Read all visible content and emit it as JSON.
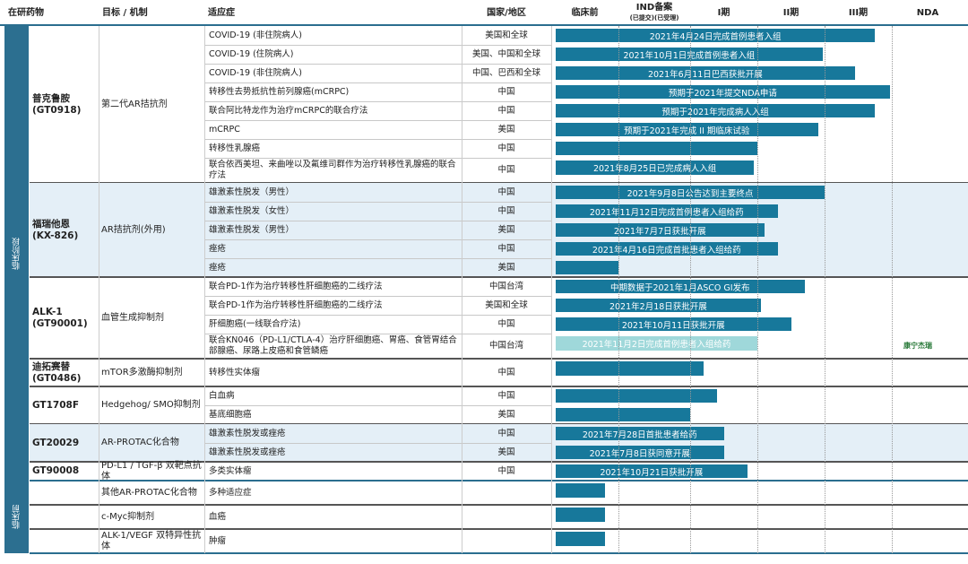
{
  "header": {
    "columns": [
      "在研药物",
      "目标 / 机制",
      "适应症",
      "国家/地区",
      "临床前",
      "IND备案",
      "I期",
      "II期",
      "III期",
      "NDA"
    ],
    "ind_sub": "(已提交)(已受理)"
  },
  "groups": [
    {
      "label": "临床阶段",
      "drugs": [
        {
          "name": "普克鲁胺",
          "code": "(GT0918)",
          "target": "第二代AR拮抗剂",
          "rows": [
            {
              "indication": "COVID-19 (非住院病人)",
              "region": "美国和全球",
              "progress": 4.75,
              "note": "2021年4月24日完成首例患者入组"
            },
            {
              "indication": "COVID-19 (住院病人)",
              "region": "美国、中国和全球",
              "progress": 3.97,
              "note": "2021年10月1日完成首例患者入组"
            },
            {
              "indication": "COVID-19 (非住院病人)",
              "region": "中国、巴西和全球",
              "progress": 4.45,
              "note": "2021年6月11日巴西获批开展"
            },
            {
              "indication": "转移性去势抵抗性前列腺癌(mCRPC)",
              "region": "中国",
              "progress": 4.97,
              "note": "预期于2021年提交NDA申请"
            },
            {
              "indication": "联合阿比特龙作为治疗mCRPC的联合疗法",
              "region": "中国",
              "progress": 4.75,
              "note": "预期于2021年完成病人入组"
            },
            {
              "indication": "mCRPC",
              "region": "美国",
              "progress": 3.9,
              "note": "预期于2021年完成 II 期临床试验"
            },
            {
              "indication": "转移性乳腺癌",
              "region": "中国",
              "progress": 3.0
            },
            {
              "indication": "联合依西美坦、来曲唑以及氟维司群作为治疗转移性乳腺癌的联合疗法",
              "region": "中国",
              "progress": 2.95,
              "note": "2021年8月25日已完成病人入组"
            }
          ]
        },
        {
          "name": "福瑞他恩",
          "code": "(KX-826)",
          "target": "AR拮抗剂(外用)",
          "shade": true,
          "rows": [
            {
              "indication": "雄激素性脱发（男性）",
              "region": "中国",
              "progress": 4.0,
              "note": "2021年9月8日公告达到主要终点"
            },
            {
              "indication": "雄激素性脱发（女性）",
              "region": "中国",
              "progress": 3.3,
              "note": "2021年11月12日完成首例患者入组给药"
            },
            {
              "indication": "雄激素性脱发（男性）",
              "region": "美国",
              "progress": 3.1,
              "note": "2021年7月7日获批开展"
            },
            {
              "indication": "痤疮",
              "region": "中国",
              "progress": 3.3,
              "note": "2021年4月16日完成首批患者入组给药"
            },
            {
              "indication": "痤疮",
              "region": "美国",
              "progress": 1.0
            }
          ]
        },
        {
          "name": "ALK-1",
          "code": "(GT90001)",
          "target": "血管生成抑制剂",
          "rows": [
            {
              "indication": "联合PD-1作为治疗转移性肝细胞癌的二线疗法",
              "region": "中国台湾",
              "progress": 3.7,
              "note": "中期数据于2021年1月ASCO GI发布"
            },
            {
              "indication": "联合PD-1作为治疗转移性肝细胞癌的二线疗法",
              "region": "美国和全球",
              "progress": 3.05,
              "note": "2021年2月18日获批开展"
            },
            {
              "indication": "肝细胞癌(一线联合疗法)",
              "region": "中国",
              "progress": 3.5,
              "note": "2021年10月11日获批开展"
            },
            {
              "indication": "联合KN046（PD-L1/CTLA-4）治疗肝细胞癌、胃癌、食管胃结合部腺癌、尿路上皮癌和食管鳞癌",
              "region": "中国台湾",
              "progress": 3.0,
              "note": "2021年11月2日完成首例患者入组给药",
              "light": true,
              "partner": "康宁杰瑞"
            }
          ]
        },
        {
          "name": "迪拓赛替",
          "code": "(GT0486)",
          "target": "mTOR多激酶抑制剂",
          "rows": [
            {
              "indication": "转移性实体瘤",
              "region": "中国",
              "progress": 2.2
            }
          ]
        },
        {
          "name": "GT1708F",
          "target": "Hedgehog/ SMO抑制剂",
          "rows": [
            {
              "indication": "白血病",
              "region": "中国",
              "progress": 2.4
            },
            {
              "indication": "基底细胞癌",
              "region": "美国",
              "progress": 2.0
            }
          ]
        },
        {
          "name": "GT20029",
          "target": "AR-PROTAC化合物",
          "shade": true,
          "rows": [
            {
              "indication": "雄激素性脱发或痤疮",
              "region": "中国",
              "progress": 2.5,
              "note": "2021年7月28日首批患者给药"
            },
            {
              "indication": "雄激素性脱发或痤疮",
              "region": "美国",
              "progress": 2.5,
              "note": "2021年7月8日获同意开展"
            }
          ]
        },
        {
          "name": "GT90008",
          "target": "PD-L1 / TGF-β 双靶点抗体",
          "rows": [
            {
              "indication": "多类实体瘤",
              "region": "中国",
              "progress": 2.85,
              "note": "2021年10月21日获批开展"
            }
          ]
        }
      ]
    },
    {
      "label": "临床前",
      "drugs": [
        {
          "target": "其他AR-PROTAC化合物",
          "rows": [
            {
              "indication": "多种适应症",
              "progress": 0.8
            }
          ]
        },
        {
          "target": "c-Myc抑制剂",
          "rows": [
            {
              "indication": "血癌",
              "progress": 0.8
            }
          ]
        },
        {
          "target": "ALK-1/VEGF 双特异性抗体",
          "rows": [
            {
              "indication": "肿瘤",
              "progress": 0.8
            }
          ]
        }
      ]
    }
  ]
}
